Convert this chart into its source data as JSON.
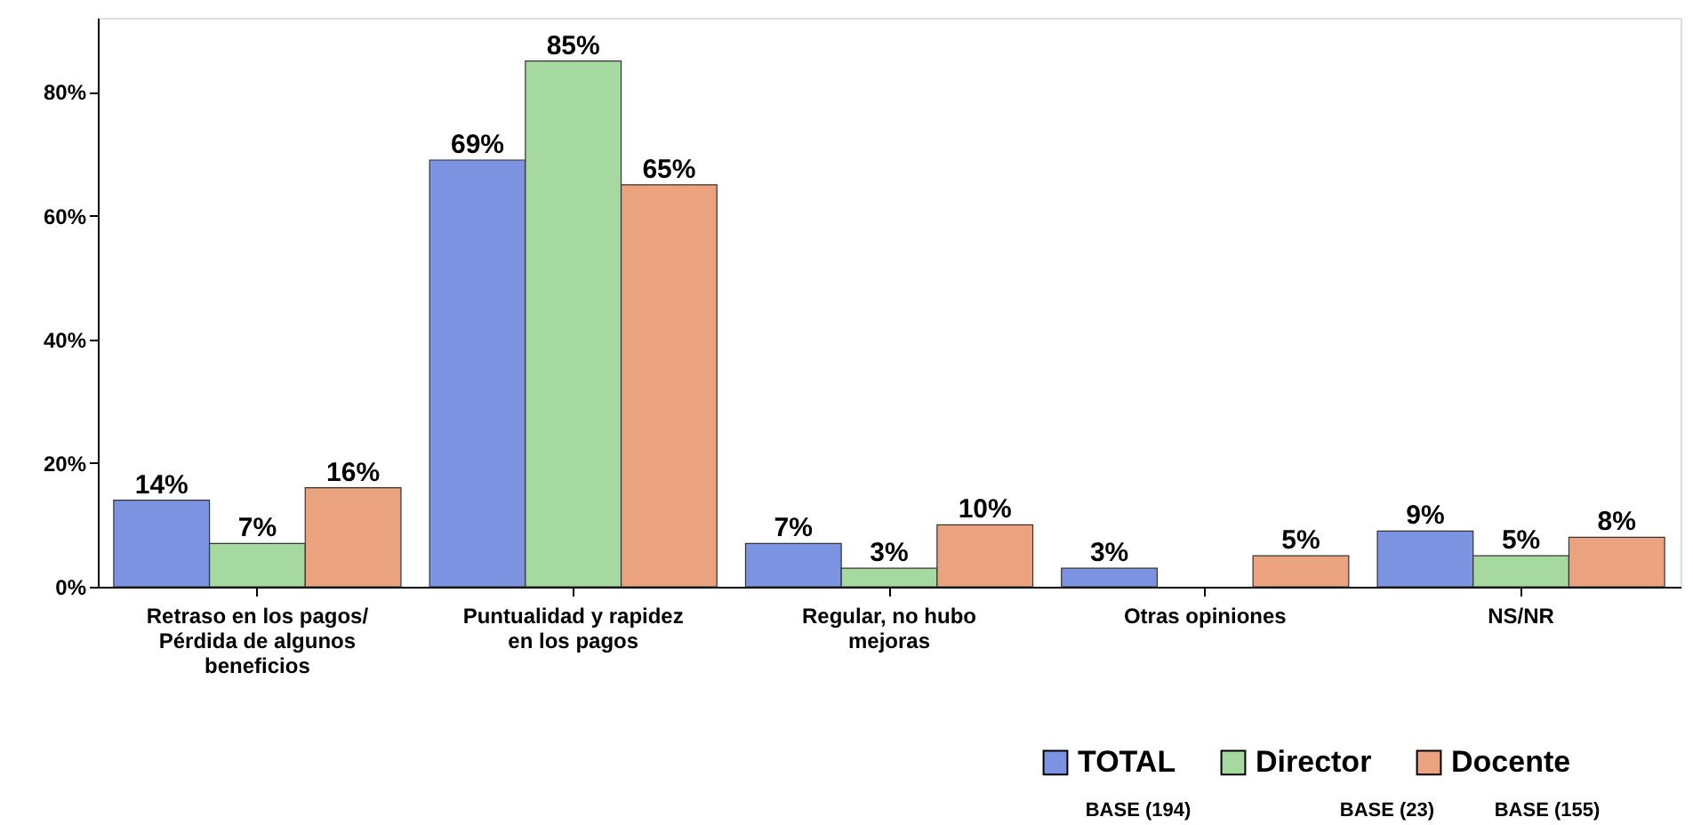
{
  "chart_data": {
    "type": "bar",
    "categories": [
      "Retraso en los pagos/\nPérdida de algunos\nbeneficios",
      "Puntualidad y rapidez\nen los pagos",
      "Regular, no hubo\nmejoras",
      "Otras opiniones",
      "NS/NR"
    ],
    "series": [
      {
        "name": "TOTAL",
        "color": "#7b93e0",
        "values": [
          14,
          69,
          7,
          3,
          9
        ],
        "value_labels": [
          "14%",
          "69%",
          "7%",
          "3%",
          "9%"
        ]
      },
      {
        "name": "Director",
        "color": "#a6d9a0",
        "values": [
          7,
          85,
          3,
          null,
          5
        ],
        "value_labels": [
          "7%",
          "85%",
          "3%",
          null,
          "5%"
        ]
      },
      {
        "name": "Docente",
        "color": "#eba37f",
        "values": [
          16,
          65,
          10,
          5,
          8
        ],
        "value_labels": [
          "16%",
          "65%",
          "10%",
          "5%",
          "8%"
        ]
      }
    ],
    "ylim": [
      0,
      92
    ],
    "yticks": [
      {
        "value": 0,
        "label": "0%"
      },
      {
        "value": 20,
        "label": "20%"
      },
      {
        "value": 40,
        "label": "40%"
      },
      {
        "value": 60,
        "label": "60%"
      },
      {
        "value": 80,
        "label": "80%"
      }
    ],
    "grid": false,
    "legend": "bottom right",
    "annotations": [
      "BASE (194)",
      "BASE (23)",
      "BASE (155)"
    ]
  }
}
